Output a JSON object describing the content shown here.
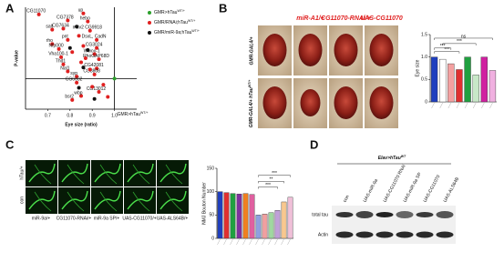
{
  "panels": {
    "a": "A",
    "b": "B",
    "c": "C",
    "d": "D"
  },
  "chart_data": [
    {
      "type": "scatter",
      "xlabel": "Eye size (ratio)",
      "ylabel": "P-value",
      "xlim": [
        0.6,
        1.1
      ],
      "xticks": [
        0.7,
        0.8,
        0.9,
        {
          "value": 1.0,
          "label": "1.0"
        }
      ],
      "ylim": [
        0,
        10
      ],
      "reference_lines": {
        "x": 1.0,
        "y": 3
      },
      "series": [
        {
          "name": "GMR>hTau",
          "name_sup": "WT/+",
          "color": "#2ca02c",
          "x": [
            1.0
          ],
          "values": [
            3
          ],
          "labels": [
            null
          ]
        },
        {
          "name": "GMR/RNAi;hTau",
          "name_sup": "WT/+",
          "color": "#e02020",
          "x": [
            0.66,
            0.72,
            0.79,
            0.77,
            0.86,
            0.88,
            0.89,
            0.92,
            0.72,
            0.79,
            0.75,
            0.76,
            0.77,
            0.79,
            0.92,
            0.91,
            0.93,
            0.92,
            0.91,
            0.83,
            0.83,
            0.93,
            0.81,
            0.85,
            0.84,
            0.86,
            0.81,
            0.87,
            0.85,
            0.89,
            0.95,
            0.97,
            0.9
          ],
          "values": [
            9.3,
            7.8,
            8.7,
            7.9,
            9.4,
            8.6,
            7.7,
            6.8,
            6.4,
            6.8,
            5.9,
            5.1,
            4.4,
            3.7,
            6.0,
            5.4,
            4.9,
            4.0,
            3.4,
            3.2,
            2.6,
            1.7,
            0.9,
            1.3,
            7.2,
            6.2,
            5.6,
            5.0,
            4.6,
            3.9,
            2.4,
            1.2,
            2.2
          ],
          "labels": [
            "CG11070",
            "salt",
            "CG7378",
            "CG7634",
            "up",
            "hebo",
            "mdv2 CG9918",
            "DsxL, CadN",
            "rho",
            "pnt",
            "Nfp000",
            "Vha100-1",
            "Thd1",
            "Nal1",
            "CG3024",
            "Wwox-1",
            "RhoGAP68D",
            "CG42081",
            "CG8808",
            "syp",
            "CG6032",
            "CG13012",
            "bsr2",
            "wbp",
            null,
            null,
            null,
            null,
            null,
            null,
            null,
            null,
            null
          ]
        },
        {
          "name": "GMR/miR-9a;hTau",
          "name_sup": "WT/+",
          "color": "#111111",
          "x": [
            0.83,
            0.8,
            0.88,
            0.86,
            0.84,
            0.91
          ],
          "values": [
            8.1,
            6.0,
            5.8,
            4.1,
            2.1,
            1.0
          ],
          "labels": [
            null,
            null,
            null,
            null,
            null,
            null
          ]
        }
      ],
      "annotation": "GMR>hTau",
      "annotation_sup": "WT/+"
    },
    {
      "type": "bar",
      "ylabel": "Eye size",
      "ylim": [
        0,
        1.5
      ],
      "yticks": [
        0,
        {
          "value": 0.5,
          "label": "0.5"
        },
        {
          "value": 1.0,
          "label": "1.0"
        },
        {
          "value": 1.5,
          "label": "1.5"
        }
      ],
      "values": [
        1.0,
        0.95,
        0.85,
        0.72,
        1.0,
        0.6,
        1.0,
        0.7
      ],
      "colors": [
        "#1f3fbf",
        "#ffffff",
        "#f4a0a0",
        "#e03030",
        "#20a040",
        "#c8e8c8",
        "#d020a0",
        "#f0b0e0"
      ],
      "brackets": [
        {
          "text": "***",
          "from": 0,
          "to": 3,
          "y": 1.12
        },
        {
          "text": "***",
          "from": 0,
          "to": 2,
          "y": 1.2
        },
        {
          "text": "***",
          "from": 1,
          "to": 5,
          "y": 1.3
        },
        {
          "text": "ns",
          "from": 0,
          "to": 7,
          "y": 1.42
        }
      ]
    },
    {
      "type": "bar",
      "ylabel": "NMJ Bouton Number",
      "ylim": [
        0,
        150
      ],
      "yticks": [
        0,
        50,
        100,
        150
      ],
      "values": [
        100,
        98,
        96,
        95,
        96,
        94,
        50,
        52,
        55,
        60,
        78,
        88
      ],
      "colors": [
        "#1f3fbf",
        "#e03030",
        "#20a040",
        "#8030a0",
        "#f08020",
        "#e060a0",
        "#8fa0e0",
        "#f0a0a0",
        "#a0d8a0",
        "#c0a0d8",
        "#f8c890",
        "#f0c0d8"
      ],
      "brackets": [
        {
          "text": "***",
          "from": 6,
          "to": 11,
          "y": 135
        },
        {
          "text": "**",
          "from": 6,
          "to": 10,
          "y": 122
        },
        {
          "text": "***",
          "from": 6,
          "to": 9,
          "y": 110
        }
      ]
    }
  ],
  "panel_b": {
    "columns": [
      "miR-A1/+",
      "CG11070-RNAi/+",
      "UAS-CG11070"
    ],
    "rows": [
      "GMR-GAL4/+",
      "GMR-GAL4/+ hTau"
    ],
    "row_sup": "WT/+"
  },
  "panel_c": {
    "rows": [
      "hTau/+",
      "con"
    ],
    "columns": [
      "miR-9a/+",
      "CG11070-RNAi/+",
      "miR-9a SP/+",
      "UAS-CG11070/+",
      "UAS-ALS64B/+"
    ]
  },
  "panel_d": {
    "title": "Elav>hTau",
    "title_sup": "WT",
    "lanes": [
      "con",
      "UAS-miR-9a",
      "UAS-CG11070 RNAi",
      "UAS-miR-9a SP",
      "UAS-CG11070",
      "UAS-ALS64B"
    ],
    "rows": [
      "total tau",
      "Actin"
    ]
  }
}
